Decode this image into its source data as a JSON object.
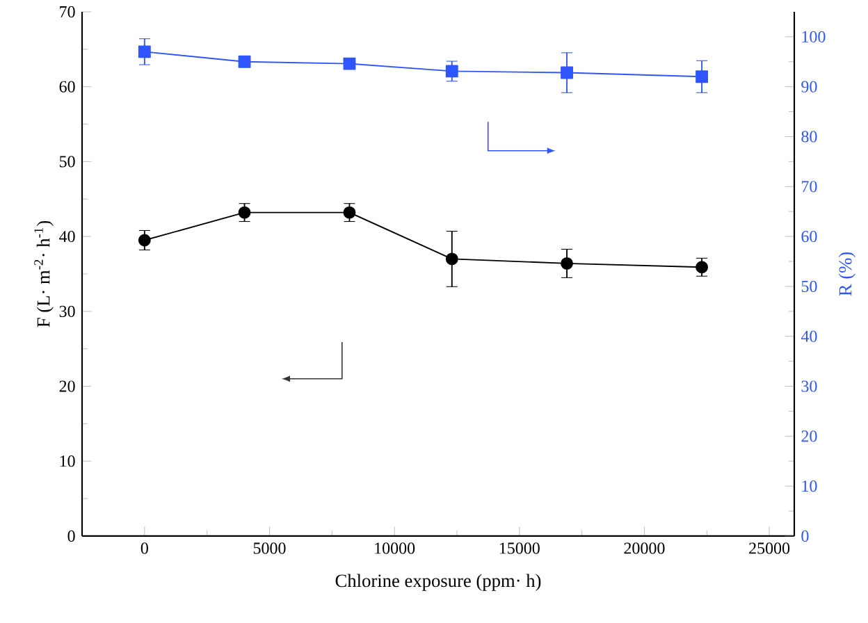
{
  "chart_data": {
    "type": "line",
    "xlabel": "Chlorine exposure (ppm· h)",
    "ylabel": "F (L· m$^{-2}$· h$^{-1}$)",
    "y2label": "R (%)",
    "x": [
      0,
      4000,
      8200,
      12300,
      16900,
      22300
    ],
    "xlim": [
      -2500,
      26000
    ],
    "xticks": [
      0,
      5000,
      10000,
      15000,
      20000,
      25000
    ],
    "ylim": [
      0,
      70
    ],
    "yticks": [
      0,
      10,
      20,
      30,
      40,
      50,
      60,
      70
    ],
    "y2lim": [
      0,
      105
    ],
    "y2ticks": [
      0,
      10,
      20,
      30,
      40,
      50,
      60,
      70,
      80,
      90,
      100
    ],
    "grid": false,
    "line_style": "solid",
    "series": [
      {
        "color": "#000000",
        "marker": "circle",
        "values": [
          39.5,
          43.2,
          43.2,
          37.0,
          36.4,
          35.9
        ],
        "errors": [
          1.3,
          1.2,
          1.2,
          3.7,
          1.9,
          1.2
        ]
      },
      {
        "color": "#2f55ff",
        "marker": "square",
        "axis": "y2",
        "values": [
          97.0,
          95.0,
          94.6,
          93.1,
          92.8,
          92.0
        ],
        "errors": [
          2.6,
          null,
          null,
          2.0,
          4.0,
          3.2
        ]
      }
    ]
  }
}
